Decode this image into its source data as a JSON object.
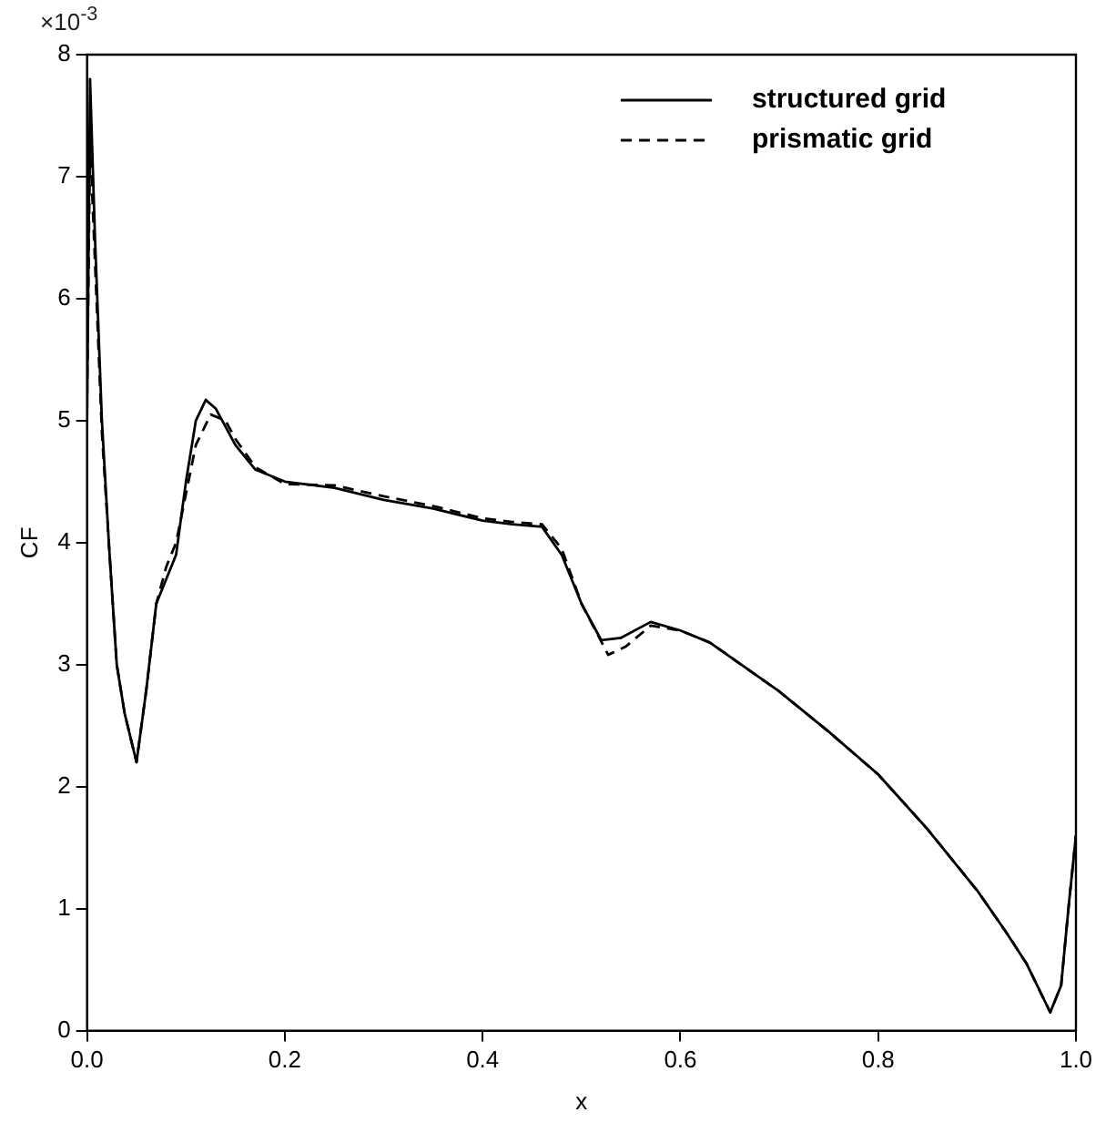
{
  "chart_data": {
    "type": "line",
    "xlabel": "x",
    "ylabel": "CF",
    "annotations": [
      "×10$^{-3}$"
    ],
    "xlim": [
      0,
      1
    ],
    "xticks": [
      {
        "value": 0,
        "label": "0.0"
      },
      0.2,
      0.4,
      0.6,
      0.8,
      {
        "value": 1,
        "label": "1.0"
      }
    ],
    "ylim": [
      0,
      8
    ],
    "yticks": [
      0,
      1,
      2,
      3,
      4,
      5,
      6,
      7,
      8
    ],
    "grid": false,
    "legend": "top right",
    "marker": "none",
    "series": [
      {
        "name": "structured grid",
        "color": "#000000",
        "line_style": "solid",
        "x": [
          0,
          0.003,
          0.008,
          0.015,
          0.022,
          0.03,
          0.038,
          0.05,
          0.06,
          0.07,
          0.08,
          0.09,
          0.1,
          0.11,
          0.12,
          0.13,
          0.15,
          0.17,
          0.2,
          0.25,
          0.3,
          0.35,
          0.4,
          0.43,
          0.46,
          0.48,
          0.5,
          0.52,
          0.54,
          0.57,
          0.6,
          0.63,
          0.7,
          0.75,
          0.8,
          0.85,
          0.9,
          0.93,
          0.95,
          0.974,
          0.985,
          0.993,
          1.0
        ],
        "values": [
          5.0,
          7.8,
          6.5,
          5.0,
          4.0,
          3.0,
          2.6,
          2.2,
          2.8,
          3.5,
          3.7,
          3.9,
          4.5,
          5.0,
          5.17,
          5.1,
          4.8,
          4.6,
          4.5,
          4.45,
          4.35,
          4.28,
          4.18,
          4.15,
          4.13,
          3.9,
          3.5,
          3.2,
          3.22,
          3.35,
          3.28,
          3.18,
          2.78,
          2.45,
          2.1,
          1.65,
          1.15,
          0.8,
          0.55,
          0.15,
          0.37,
          1.05,
          1.6
        ]
      },
      {
        "name": "prismatic grid",
        "color": "#000000",
        "line_style": "dashed",
        "x": [
          0,
          0.003,
          0.008,
          0.015,
          0.022,
          0.03,
          0.038,
          0.05,
          0.06,
          0.07,
          0.08,
          0.09,
          0.1,
          0.11,
          0.125,
          0.14,
          0.15,
          0.17,
          0.2,
          0.25,
          0.3,
          0.35,
          0.4,
          0.43,
          0.46,
          0.48,
          0.5,
          0.527,
          0.545,
          0.57,
          0.6,
          0.63,
          0.7,
          0.75,
          0.8,
          0.85,
          0.9,
          0.93,
          0.95,
          0.974,
          0.985,
          0.993,
          1.0
        ],
        "values": [
          5.2,
          7.3,
          6.3,
          4.9,
          4.0,
          3.0,
          2.6,
          2.2,
          2.8,
          3.5,
          3.8,
          4.0,
          4.4,
          4.8,
          5.05,
          5.0,
          4.85,
          4.62,
          4.48,
          4.47,
          4.38,
          4.3,
          4.2,
          4.17,
          4.15,
          3.95,
          3.5,
          3.08,
          3.15,
          3.32,
          3.28,
          3.18,
          2.78,
          2.45,
          2.1,
          1.65,
          1.15,
          0.8,
          0.55,
          0.15,
          0.37,
          1.05,
          1.6
        ]
      }
    ]
  }
}
